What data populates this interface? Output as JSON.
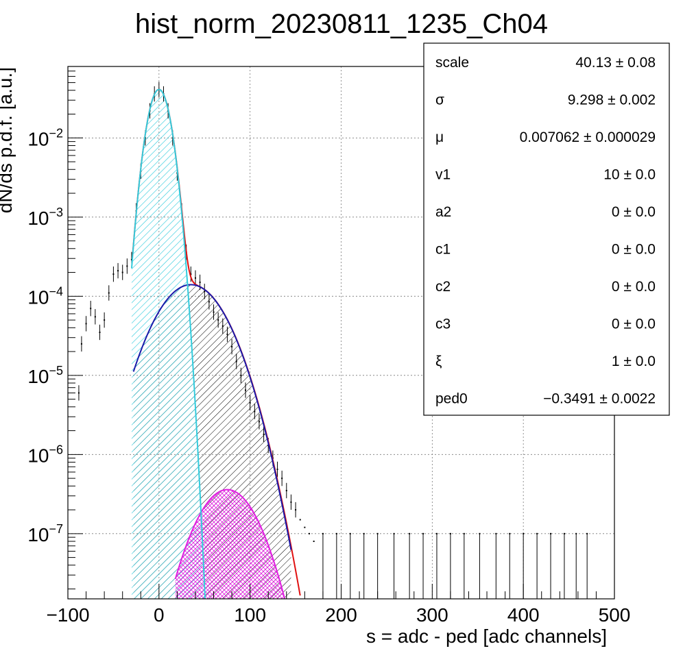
{
  "chart_data": {
    "type": "histogram_fit",
    "title": "hist_norm_20230811_1235_Ch04",
    "xlabel": "s = adc - ped [adc channels]",
    "ylabel": "dN/ds p.d.f. [a.u.]",
    "xlim": [
      -100,
      500
    ],
    "ylim": [
      1.5e-08,
      0.08
    ],
    "yscale": "log",
    "grid": true,
    "x_ticks": [
      {
        "value": -100,
        "label": "−100"
      },
      {
        "value": 0,
        "label": "0"
      },
      {
        "value": 100,
        "label": "100"
      },
      {
        "value": 200,
        "label": "200"
      },
      {
        "value": 300,
        "label": "300"
      },
      {
        "value": 400,
        "label": "400"
      },
      {
        "value": 500,
        "label": "500"
      }
    ],
    "y_ticks": [
      {
        "value": 1e-07,
        "mant": "10",
        "exp": "−7"
      },
      {
        "value": 1e-06,
        "mant": "10",
        "exp": "−6"
      },
      {
        "value": 1e-05,
        "mant": "10",
        "exp": "−5"
      },
      {
        "value": 0.0001,
        "mant": "10",
        "exp": "−4"
      },
      {
        "value": 0.001,
        "mant": "10",
        "exp": "−3"
      },
      {
        "value": 0.01,
        "mant": "10",
        "exp": "−2"
      }
    ],
    "colors": {
      "pedestal": "#33ccdd",
      "single_pe": "#1a1aaa",
      "double_pe": "#e01ee0",
      "total_fit": "#e01010",
      "data": "#000000"
    },
    "data_points": [
      [
        -88,
        6e-06
      ],
      [
        -85,
        2.5e-05
      ],
      [
        -80,
        4.5e-05
      ],
      [
        -75,
        7e-05
      ],
      [
        -70,
        5.5e-05
      ],
      [
        -65,
        3.5e-05
      ],
      [
        -60,
        5e-05
      ],
      [
        -55,
        0.00011
      ],
      [
        -50,
        0.00019
      ],
      [
        -45,
        0.00021
      ],
      [
        -40,
        0.0002
      ],
      [
        -35,
        0.00024
      ],
      [
        -30,
        0.00029
      ],
      [
        -25,
        0.0012
      ],
      [
        -20,
        0.0038
      ],
      [
        -15,
        0.01
      ],
      [
        -10,
        0.022
      ],
      [
        -5,
        0.036
      ],
      [
        0,
        0.041
      ],
      [
        5,
        0.036
      ],
      [
        10,
        0.022
      ],
      [
        15,
        0.01
      ],
      [
        20,
        0.0036
      ],
      [
        25,
        0.0012
      ],
      [
        30,
        0.00036
      ],
      [
        35,
        0.00019
      ],
      [
        40,
        0.00017
      ],
      [
        45,
        0.00015
      ],
      [
        50,
        0.000115
      ],
      [
        55,
        8.5e-05
      ],
      [
        60,
        6.3e-05
      ],
      [
        65,
        5e-05
      ],
      [
        70,
        4.2e-05
      ],
      [
        75,
        3.3e-05
      ],
      [
        80,
        2.3e-05
      ],
      [
        85,
        1.5e-05
      ],
      [
        90,
        1e-05
      ],
      [
        95,
        6.5e-06
      ],
      [
        100,
        4.5e-06
      ],
      [
        105,
        3.5e-06
      ],
      [
        110,
        2.6e-06
      ],
      [
        115,
        1.8e-06
      ],
      [
        120,
        1.3e-06
      ],
      [
        125,
        9e-07
      ],
      [
        130,
        6.5e-07
      ],
      [
        135,
        5e-07
      ],
      [
        140,
        3.5e-07
      ],
      [
        145,
        2.5e-07
      ],
      [
        150,
        2e-07
      ],
      [
        155,
        1.5e-07
      ],
      [
        160,
        1.2e-07
      ],
      [
        165,
        1e-07
      ],
      [
        170,
        8e-08
      ],
      [
        180,
        1e-07
      ],
      [
        195,
        1e-07
      ],
      [
        210,
        1e-07
      ],
      [
        225,
        1e-07
      ],
      [
        240,
        1e-07
      ],
      [
        258,
        1e-07
      ],
      [
        275,
        1e-07
      ],
      [
        290,
        1e-07
      ],
      [
        305,
        1e-07
      ],
      [
        320,
        1e-07
      ],
      [
        335,
        1e-07
      ],
      [
        352,
        1e-07
      ],
      [
        370,
        1e-07
      ],
      [
        385,
        1e-07
      ],
      [
        400,
        1e-07
      ],
      [
        415,
        1e-07
      ],
      [
        430,
        1e-07
      ],
      [
        445,
        1e-07
      ],
      [
        458,
        1e-07
      ],
      [
        470,
        1e-07
      ]
    ],
    "fit_components": {
      "pedestal": {
        "mean": 0,
        "sigma": 9.3,
        "amp": 0.041,
        "x_range": [
          -30,
          55
        ]
      },
      "single_pe": {
        "mean": 35,
        "sigma": 28,
        "amp": 0.00014,
        "x_range": [
          -28,
          145
        ]
      },
      "double_pe": {
        "mean": 75,
        "sigma": 25,
        "amp": 3.6e-07,
        "x_range": [
          18,
          155
        ]
      }
    }
  },
  "stats": {
    "rows": [
      {
        "name": "scale",
        "value": "40.13",
        "err": "0.08"
      },
      {
        "name": "σ",
        "value": "9.298",
        "err": "0.002"
      },
      {
        "name": "μ",
        "value": "0.007062",
        "err": "0.000029"
      },
      {
        "name": "v1",
        "value": "10",
        "err": "0.0"
      },
      {
        "name": "a2",
        "value": "0",
        "err": "0.0"
      },
      {
        "name": "c1",
        "value": "0",
        "err": "0.0"
      },
      {
        "name": "c2",
        "value": "0",
        "err": "0.0"
      },
      {
        "name": "c3",
        "value": "0",
        "err": "0.0"
      },
      {
        "name": "ξ",
        "value": "1",
        "err": "0.0"
      },
      {
        "name": "ped0",
        "value": "−0.3491",
        "err": "0.0022"
      }
    ],
    "pm_symbol": "±"
  }
}
